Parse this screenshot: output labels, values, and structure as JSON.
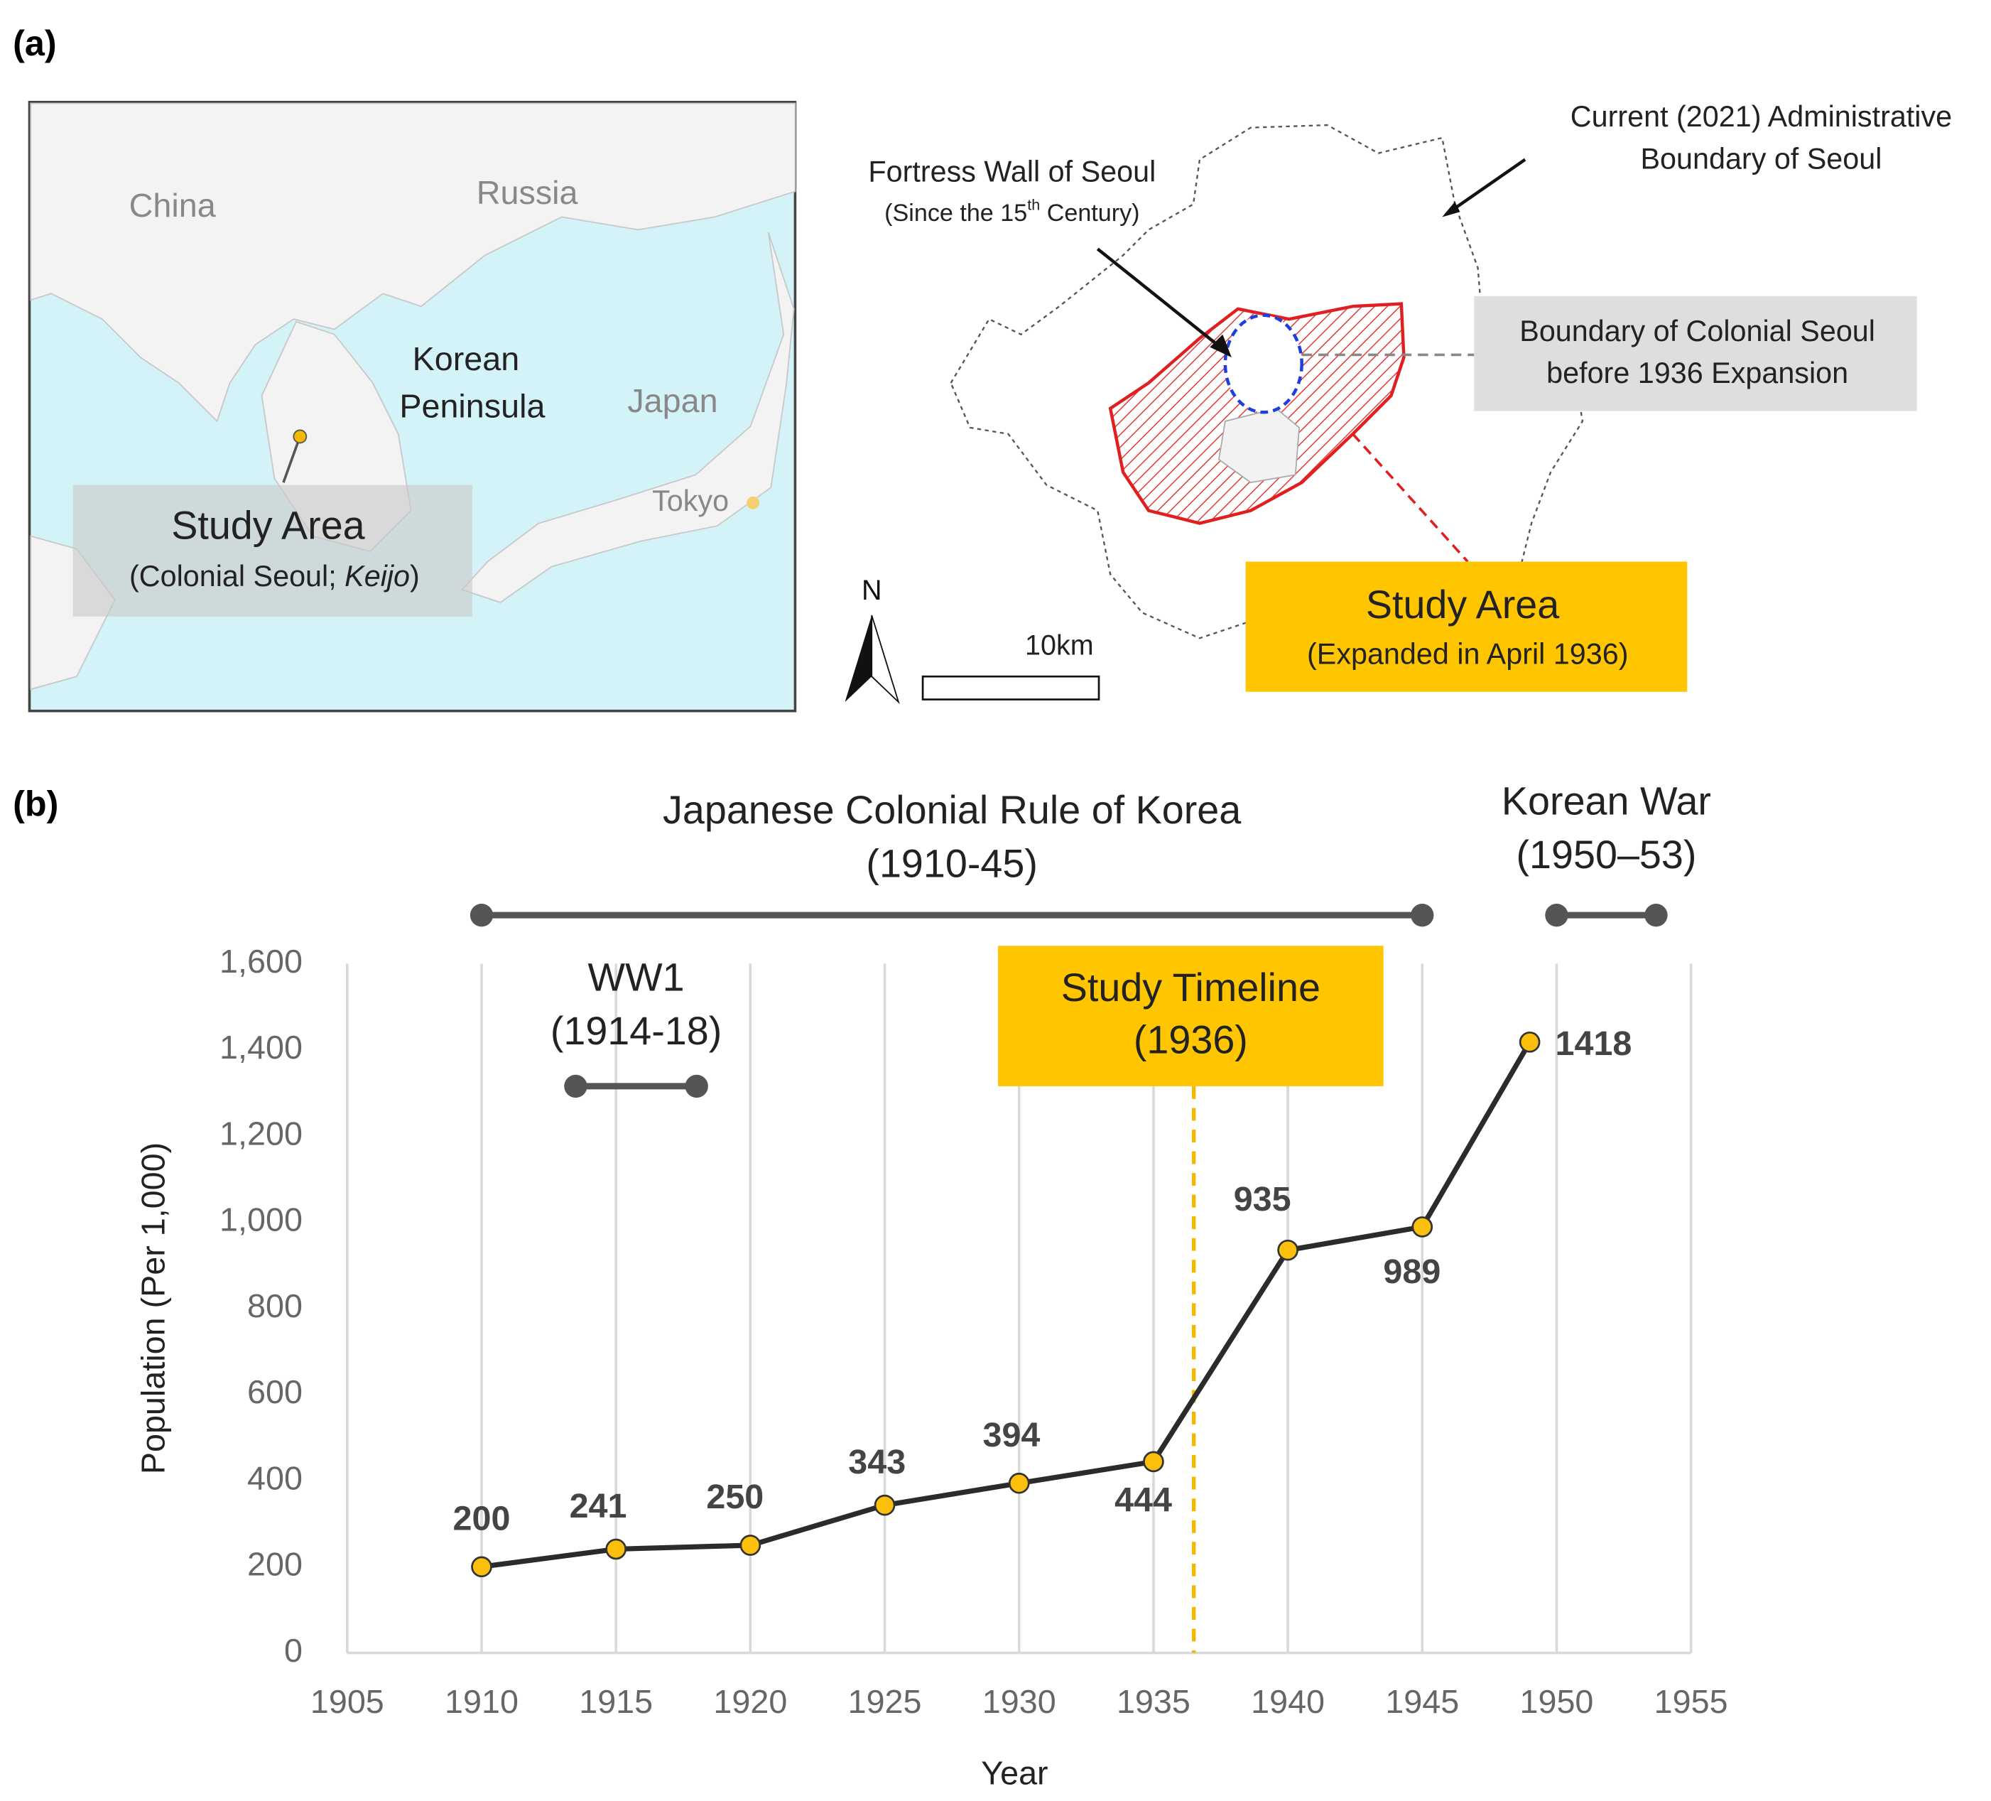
{
  "panel_a": {
    "label": "(a)",
    "inset": {
      "china": "China",
      "russia": "Russia",
      "korean_peninsula": [
        "Korean",
        "Peninsula"
      ],
      "japan": "Japan",
      "tokyo": "Tokyo",
      "study_area": {
        "title": "Study Area",
        "subtitle_parts": [
          "(Colonial Seoul; ",
          "Keijo",
          ")"
        ]
      }
    },
    "seoul": {
      "current_boundary": [
        "Current (2021) Administrative",
        "Boundary of Seoul"
      ],
      "fortress_wall": {
        "title": "Fortress Wall of Seoul",
        "note_parts": [
          "(Since the 15",
          "th",
          " Century)"
        ]
      },
      "colonial_boundary": [
        "Boundary of Colonial Seoul",
        "before 1936 Expansion"
      ],
      "study_area": {
        "title": "Study Area",
        "subtitle": "(Expanded in April 1936)"
      },
      "north": "N",
      "scale": "10km"
    }
  },
  "chart_data": {
    "type": "line",
    "panel_label": "(b)",
    "x_label": "Year",
    "y_label": "Population (Per 1,000)",
    "x": [
      1910,
      1915,
      1920,
      1925,
      1930,
      1935,
      1940,
      1945,
      1949
    ],
    "values": [
      200,
      241,
      250,
      343,
      394,
      444,
      935,
      989,
      1418
    ],
    "color": "#2b2b2b",
    "marker_color": "#fbbf0c",
    "xlim": [
      1905,
      1955
    ],
    "xticks": [
      1905,
      1910,
      1915,
      1920,
      1925,
      1930,
      1935,
      1940,
      1945,
      1950,
      1955
    ],
    "ylim": [
      0,
      1600
    ],
    "yticks": [
      0,
      200,
      400,
      600,
      800,
      {
        "value": 1000,
        "label": "1,000"
      },
      {
        "value": 1200,
        "label": "1,200"
      },
      {
        "value": 1400,
        "label": "1,400"
      },
      {
        "value": 1600,
        "label": "1,600"
      }
    ],
    "grid": "x",
    "periods": [
      {
        "label": [
          "Japanese Colonial Rule of Korea",
          "(1910-45)"
        ],
        "start": 1910,
        "end": 1945
      },
      {
        "label": [
          "WW1",
          "(1914-18)"
        ],
        "start": 1913.5,
        "end": 1918
      },
      {
        "label": [
          "Korean War",
          "(1950–53)"
        ],
        "start": 1950,
        "end": 1953.7
      }
    ],
    "study_timeline": {
      "label": [
        "Study Timeline",
        "(1936)"
      ],
      "x": 1936.5
    }
  }
}
